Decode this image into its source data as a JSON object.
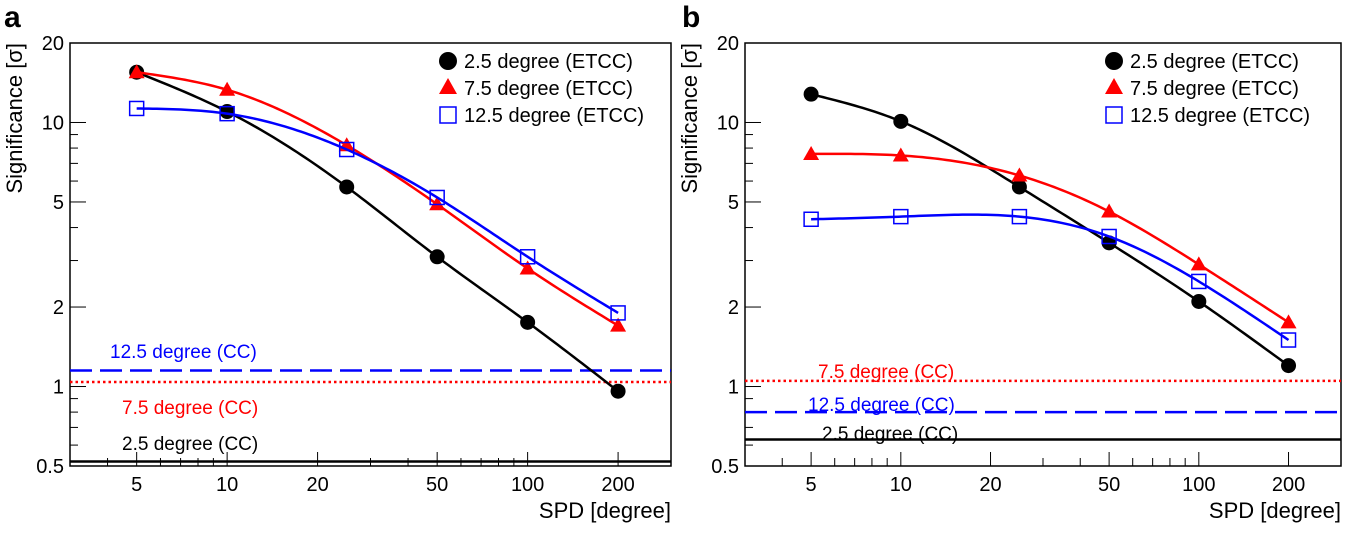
{
  "chart_data": [
    {
      "type": "scatter",
      "panel_label": "a",
      "xlabel": "SPD [degree]",
      "ylabel": "Significance [σ]",
      "xscale": "log",
      "yscale": "log",
      "xlim": [
        3,
        300
      ],
      "ylim": [
        0.5,
        20
      ],
      "x_ticks": [
        5,
        10,
        20,
        50,
        100,
        200
      ],
      "y_ticks": [
        0.5,
        1,
        2,
        5,
        10,
        20
      ],
      "legend_position": "top-right",
      "series": [
        {
          "name": "2.5 degree (ETCC)",
          "color": "#000000",
          "marker": "filled-circle",
          "x": [
            5,
            10,
            25,
            50,
            100,
            200
          ],
          "y": [
            15.5,
            11.0,
            5.7,
            3.1,
            1.75,
            0.96
          ]
        },
        {
          "name": "7.5 degree (ETCC)",
          "color": "#ff0000",
          "marker": "filled-triangle",
          "x": [
            5,
            10,
            25,
            50,
            100,
            200
          ],
          "y": [
            15.5,
            13.3,
            8.2,
            4.9,
            2.8,
            1.7
          ]
        },
        {
          "name": "12.5 degree (ETCC)",
          "color": "#0000ff",
          "marker": "open-square",
          "x": [
            5,
            10,
            25,
            50,
            100,
            200
          ],
          "y": [
            11.3,
            10.8,
            7.9,
            5.2,
            3.1,
            1.9
          ]
        }
      ],
      "reference_lines": [
        {
          "label": "12.5 degree (CC)",
          "color": "#0000ff",
          "style": "dashed",
          "y": 1.15
        },
        {
          "label": "7.5 degree (CC)",
          "color": "#ff0000",
          "style": "dotted",
          "y": 1.04
        },
        {
          "label": "2.5 degree (CC)",
          "color": "#000000",
          "style": "solid",
          "y": 0.52
        }
      ]
    },
    {
      "type": "scatter",
      "panel_label": "b",
      "xlabel": "SPD [degree]",
      "ylabel": "Significance [σ]",
      "xscale": "log",
      "yscale": "log",
      "xlim": [
        3,
        300
      ],
      "ylim": [
        0.5,
        20
      ],
      "x_ticks": [
        5,
        10,
        20,
        50,
        100,
        200
      ],
      "y_ticks": [
        0.5,
        1,
        2,
        5,
        10,
        20
      ],
      "legend_position": "top-right",
      "series": [
        {
          "name": "2.5 degree (ETCC)",
          "color": "#000000",
          "marker": "filled-circle",
          "x": [
            5,
            10,
            25,
            50,
            100,
            200
          ],
          "y": [
            12.8,
            10.1,
            5.7,
            3.5,
            2.1,
            1.2
          ]
        },
        {
          "name": "7.5 degree (ETCC)",
          "color": "#ff0000",
          "marker": "filled-triangle",
          "x": [
            5,
            10,
            25,
            50,
            100,
            200
          ],
          "y": [
            7.6,
            7.5,
            6.3,
            4.6,
            2.9,
            1.75
          ]
        },
        {
          "name": "12.5 degree (ETCC)",
          "color": "#0000ff",
          "marker": "open-square",
          "x": [
            5,
            10,
            25,
            50,
            100,
            200
          ],
          "y": [
            4.3,
            4.4,
            4.4,
            3.7,
            2.5,
            1.5
          ]
        }
      ],
      "reference_lines": [
        {
          "label": "7.5 degree (CC)",
          "color": "#ff0000",
          "style": "dotted",
          "y": 1.05
        },
        {
          "label": "12.5 degree (CC)",
          "color": "#0000ff",
          "style": "dashed",
          "y": 0.8
        },
        {
          "label": "2.5 degree (CC)",
          "color": "#000000",
          "style": "solid",
          "y": 0.63
        }
      ]
    }
  ]
}
